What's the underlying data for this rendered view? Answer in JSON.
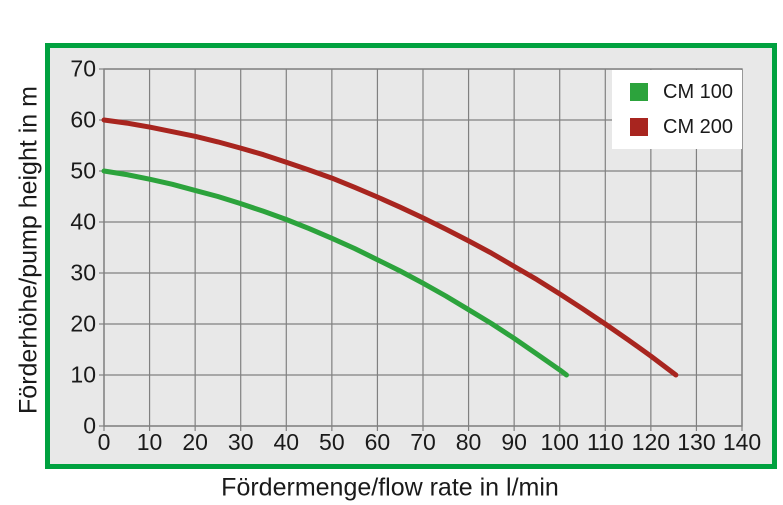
{
  "colors": {
    "frame_border": "#00a13f",
    "plot_background": "#e8e8e8",
    "grid": "#808080",
    "text": "#1a1a1a",
    "legend_background": "#ffffff"
  },
  "chart_data": {
    "type": "line",
    "title": "",
    "xlabel": "Fördermenge/flow rate in l/min",
    "ylabel": "Förderhöhe/pump height in m",
    "xlim": [
      0,
      140
    ],
    "ylim": [
      0,
      70
    ],
    "x_ticks": [
      0,
      10,
      20,
      30,
      40,
      50,
      60,
      70,
      80,
      90,
      100,
      110,
      120,
      130,
      140
    ],
    "y_ticks": [
      0,
      10,
      20,
      30,
      40,
      50,
      60,
      70
    ],
    "grid": true,
    "legend_position": "top-right",
    "series": [
      {
        "name": "CM 100",
        "color": "#2ca33c",
        "points": [
          [
            0,
            50
          ],
          [
            5,
            49.3
          ],
          [
            10,
            48.4
          ],
          [
            15,
            47.4
          ],
          [
            20,
            46.2
          ],
          [
            25,
            45.0
          ],
          [
            30,
            43.6
          ],
          [
            35,
            42.1
          ],
          [
            40,
            40.5
          ],
          [
            45,
            38.7
          ],
          [
            50,
            36.8
          ],
          [
            55,
            34.8
          ],
          [
            60,
            32.6
          ],
          [
            65,
            30.4
          ],
          [
            70,
            28.0
          ],
          [
            75,
            25.5
          ],
          [
            80,
            22.8
          ],
          [
            85,
            20.1
          ],
          [
            90,
            17.2
          ],
          [
            95,
            14.1
          ],
          [
            100,
            11.0
          ],
          [
            101.5,
            10
          ]
        ]
      },
      {
        "name": "CM 200",
        "color": "#a8251f",
        "points": [
          [
            0,
            60
          ],
          [
            5,
            59.4
          ],
          [
            10,
            58.6
          ],
          [
            15,
            57.7
          ],
          [
            20,
            56.8
          ],
          [
            25,
            55.7
          ],
          [
            30,
            54.5
          ],
          [
            35,
            53.2
          ],
          [
            40,
            51.7
          ],
          [
            45,
            50.2
          ],
          [
            50,
            48.6
          ],
          [
            55,
            46.8
          ],
          [
            60,
            44.9
          ],
          [
            65,
            42.9
          ],
          [
            70,
            40.8
          ],
          [
            75,
            38.6
          ],
          [
            80,
            36.3
          ],
          [
            85,
            33.9
          ],
          [
            90,
            31.3
          ],
          [
            95,
            28.7
          ],
          [
            100,
            25.9
          ],
          [
            105,
            23.0
          ],
          [
            110,
            20.0
          ],
          [
            115,
            16.9
          ],
          [
            120,
            13.7
          ],
          [
            125.5,
            10
          ]
        ]
      }
    ]
  }
}
